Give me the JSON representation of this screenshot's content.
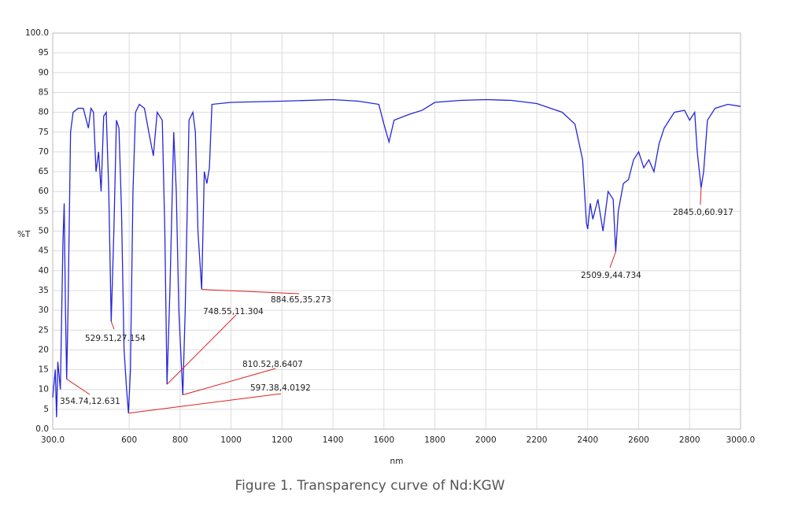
{
  "chart_data": {
    "type": "line",
    "caption": "Figure 1. Transparency curve of  Nd:KGW",
    "x_label": "nm",
    "y_label": "%T",
    "color": "#2626d9",
    "annotation_color": "#e02020",
    "grid": true,
    "xlim": [
      300,
      3000
    ],
    "ylim": [
      0,
      100
    ],
    "xticks": [
      {
        "value": 300,
        "label": "300.0"
      },
      600,
      800,
      1000,
      1200,
      1400,
      1600,
      1800,
      2000,
      2200,
      2400,
      2600,
      2800,
      {
        "value": 3000,
        "label": "3000.0"
      }
    ],
    "yticks": [
      {
        "value": 0,
        "label": "0.0"
      },
      5,
      10,
      15,
      20,
      25,
      30,
      35,
      40,
      45,
      50,
      55,
      60,
      65,
      70,
      75,
      80,
      85,
      90,
      95,
      {
        "value": 100,
        "label": "100.0"
      }
    ],
    "x": [
      300,
      310,
      315,
      320,
      330,
      340,
      345,
      350,
      354.74,
      360,
      370,
      380,
      400,
      420,
      440,
      450,
      460,
      470,
      480,
      490,
      500,
      510,
      520,
      529.51,
      540,
      550,
      560,
      570,
      580,
      590,
      597.38,
      605,
      615,
      625,
      640,
      660,
      680,
      695,
      710,
      730,
      740,
      748.55,
      760,
      775,
      785,
      795,
      810.52,
      820,
      835,
      850,
      860,
      870,
      884.65,
      895,
      905,
      915,
      925,
      1000,
      1200,
      1400,
      1500,
      1580,
      1600,
      1620,
      1640,
      1700,
      1750,
      1800,
      1900,
      2000,
      2100,
      2200,
      2300,
      2350,
      2380,
      2395,
      2400,
      2410,
      2420,
      2440,
      2460,
      2480,
      2500,
      2509.9,
      2520,
      2540,
      2560,
      2580,
      2600,
      2620,
      2640,
      2660,
      2680,
      2700,
      2740,
      2780,
      2800,
      2820,
      2830,
      2845.0,
      2855,
      2870,
      2900,
      2950,
      3000
    ],
    "values": [
      8,
      15,
      3,
      17,
      10,
      47,
      57,
      30,
      12.631,
      30,
      75,
      80,
      81,
      81,
      76,
      81,
      80,
      65,
      70,
      60,
      79,
      80,
      60,
      27.154,
      50,
      78,
      76,
      55,
      20,
      10,
      4.0192,
      15,
      60,
      80,
      82,
      81,
      74,
      69,
      80,
      78,
      50,
      11.304,
      35,
      75,
      60,
      30,
      8.6407,
      30,
      78,
      80,
      75,
      50,
      35.273,
      65,
      62,
      66,
      82,
      82.5,
      82.8,
      83.2,
      82.8,
      82,
      77,
      72.5,
      78,
      79.5,
      80.5,
      82.5,
      83,
      83.2,
      83,
      82.2,
      80,
      77,
      68,
      52,
      50.5,
      57,
      53,
      58,
      50,
      60,
      58,
      44.734,
      55,
      62,
      63,
      68,
      70,
      66,
      68,
      65,
      72,
      76,
      80,
      80.5,
      78,
      80,
      70,
      60.917,
      65,
      78,
      81,
      82,
      81.5
    ],
    "annotations": [
      {
        "label": "354.74,12.631",
        "x": 354.74,
        "y": 12.631
      },
      {
        "label": "529.51,27.154",
        "x": 529.51,
        "y": 27.154
      },
      {
        "label": "748.55,11.304",
        "x": 748.55,
        "y": 11.304
      },
      {
        "label": "597.38,4.0192",
        "x": 597.38,
        "y": 4.0192
      },
      {
        "label": "810.52,8.6407",
        "x": 810.52,
        "y": 8.6407
      },
      {
        "label": "884.65,35.273",
        "x": 884.65,
        "y": 35.273
      },
      {
        "label": "2509.9,44.734",
        "x": 2509.9,
        "y": 44.734
      },
      {
        "label": "2845.0,60.917",
        "x": 2845.0,
        "y": 60.917
      }
    ]
  }
}
